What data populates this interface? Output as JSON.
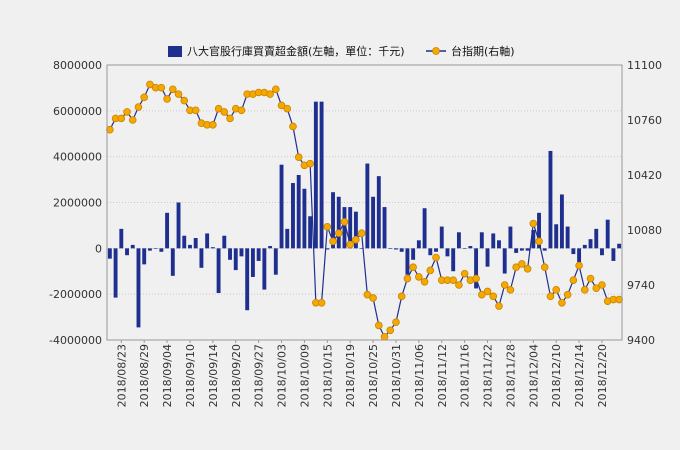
{
  "chart_data": {
    "type": "bar+line",
    "legend": {
      "bar_label": "八大官股行庫買賣超金額(左軸，單位：千元)",
      "line_label": "台指期(右軸)",
      "placement": "top"
    },
    "left_axis": {
      "ylim": [
        -4000000,
        8000000
      ],
      "ticks": [
        "8000000",
        "6000000",
        "4000000",
        "2000000",
        "0",
        "-2000000",
        "-4000000"
      ],
      "tick_values": [
        8000000,
        6000000,
        4000000,
        2000000,
        0,
        -2000000,
        -4000000
      ]
    },
    "right_axis": {
      "ylim": [
        9400,
        11100
      ],
      "ticks": [
        "11100",
        "10760",
        "10420",
        "10080",
        "9740",
        "9400"
      ],
      "tick_values": [
        11100,
        10760,
        10420,
        10080,
        9740,
        9400
      ]
    },
    "grid": true,
    "x_tick_labels": [
      "2018/08/23",
      "2018/08/29",
      "2018/09/04",
      "2018/09/10",
      "2018/09/14",
      "2018/09/20",
      "2018/09/27",
      "2018/10/03",
      "2018/10/09",
      "2018/10/15",
      "2018/10/19",
      "2018/10/25",
      "2018/10/31",
      "2018/11/06",
      "2018/11/12",
      "2018/11/16",
      "2018/11/22",
      "2018/11/28",
      "2018/12/04",
      "2018/12/10",
      "2018/12/14",
      "2018/12/20"
    ],
    "x_tick_index": [
      2,
      6,
      10,
      14,
      18,
      22,
      26,
      30,
      34,
      38,
      42,
      46,
      50,
      54,
      58,
      62,
      66,
      70,
      74,
      78,
      82,
      86
    ],
    "series": [
      {
        "name": "八大官股行庫買賣超金額(左軸，單位：千元)",
        "type": "bar",
        "color": "#1f2f8f",
        "values": [
          -450000,
          -2150000,
          850000,
          -300000,
          150000,
          -3450000,
          -700000,
          -100000,
          0,
          -150000,
          1550000,
          -1200000,
          2000000,
          550000,
          150000,
          450000,
          -850000,
          650000,
          50000,
          -1950000,
          550000,
          -500000,
          -950000,
          -350000,
          -2700000,
          -1250000,
          -550000,
          -1800000,
          100000,
          -1150000,
          3650000,
          850000,
          2850000,
          3200000,
          2600000,
          1400000,
          6400000,
          6400000,
          -50000,
          2450000,
          2250000,
          1800000,
          1800000,
          1600000,
          0,
          3700000,
          2250000,
          3150000,
          1800000,
          0,
          -50000,
          -150000,
          -1150000,
          -500000,
          350000,
          1750000,
          -300000,
          -150000,
          950000,
          -350000,
          -1000000,
          700000,
          0,
          100000,
          -1750000,
          700000,
          -800000,
          650000,
          350000,
          -1100000,
          950000,
          -200000,
          -100000,
          -100000,
          800000,
          1550000,
          -100000,
          4250000,
          1050000,
          2350000,
          950000,
          -250000,
          -600000,
          150000,
          400000,
          850000,
          -300000,
          1250000,
          -550000,
          200000
        ]
      },
      {
        "name": "台指期(右軸)",
        "type": "line",
        "color": "#1f2f8f",
        "marker_color": "#f5a800",
        "values": [
          10700,
          10770,
          10770,
          10810,
          10760,
          10840,
          10900,
          10980,
          10960,
          10960,
          10890,
          10950,
          10920,
          10880,
          10820,
          10820,
          10740,
          10730,
          10730,
          10830,
          10810,
          10770,
          10830,
          10820,
          10920,
          10920,
          10930,
          10930,
          10920,
          10950,
          10850,
          10830,
          10720,
          10530,
          10480,
          10490,
          9630,
          9630,
          10100,
          10010,
          10060,
          10130,
          9990,
          10020,
          10060,
          9680,
          9660,
          9490,
          9420,
          9460,
          9510,
          9670,
          9780,
          9850,
          9790,
          9760,
          9830,
          9910,
          9770,
          9770,
          9770,
          9740,
          9810,
          9770,
          9780,
          9680,
          9700,
          9670,
          9610,
          9740,
          9710,
          9850,
          9870,
          9840,
          10120,
          10010,
          9850,
          9670,
          9710,
          9630,
          9680,
          9770,
          9860,
          9710,
          9780,
          9720,
          9740,
          9640,
          9650,
          9650
        ]
      }
    ]
  }
}
